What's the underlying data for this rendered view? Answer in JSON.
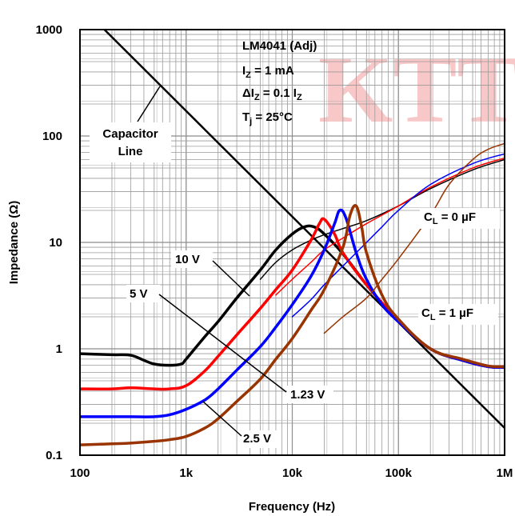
{
  "watermark": "KTT",
  "chart_data": {
    "type": "line",
    "xscale": "log",
    "yscale": "log",
    "xlim": [
      100,
      1000000
    ],
    "ylim": [
      0.1,
      1000
    ],
    "xlabel": "Frequency (Hz)",
    "ylabel": "Impedance (Ω)",
    "grid": true,
    "x_ticks": [
      {
        "value": 100,
        "label": "100"
      },
      {
        "value": 1000,
        "label": "1k"
      },
      {
        "value": 10000,
        "label": "10k"
      },
      {
        "value": 100000,
        "label": "100k"
      },
      {
        "value": 1000000,
        "label": "1M"
      }
    ],
    "y_ticks": [
      {
        "value": 0.1,
        "label": "0.1"
      },
      {
        "value": 1,
        "label": "1"
      },
      {
        "value": 10,
        "label": "10"
      },
      {
        "value": 100,
        "label": "100"
      },
      {
        "value": 1000,
        "label": "1000"
      }
    ],
    "conditions": {
      "device": "LM4041 (Adj)",
      "iz": {
        "main": "I",
        "sub": "Z",
        "rest": " = 1 mA"
      },
      "delta_iz": {
        "main": "ΔI",
        "sub": "Z",
        "rest": " = 0.1 I",
        "sub2": "Z"
      },
      "tj": {
        "main": "T",
        "sub": "j",
        "rest": " = 25°C"
      }
    },
    "annotations": {
      "capacitor_line": [
        "Capacitor",
        "Line"
      ],
      "v10": "10 V",
      "v5": "5 V",
      "v123": "1.23 V",
      "v25": "2.5 V",
      "cl0": {
        "main": "C",
        "sub": "L",
        "rest": " = 0 µF"
      },
      "cl1": {
        "main": "C",
        "sub": "L",
        "rest": " = 1 µF"
      }
    },
    "series": [
      {
        "voltage": "Capacitor Line",
        "color": "#000000",
        "width": 2.5,
        "x": [
          170,
          1000000
        ],
        "y": [
          1000,
          0.18
        ]
      },
      {
        "voltage": "10 V",
        "cl": "1 µF",
        "color": "#000000",
        "width": 3.5,
        "x": [
          100,
          200,
          300,
          400,
          500,
          700,
          900,
          1000,
          1500,
          2000,
          3000,
          5000,
          7000,
          10000,
          13000,
          16000,
          20000,
          30000,
          50000,
          70000,
          100000,
          200000,
          400000,
          700000,
          1000000
        ],
        "y": [
          0.9,
          0.88,
          0.87,
          0.78,
          0.72,
          0.7,
          0.72,
          0.8,
          1.3,
          1.8,
          3.0,
          5.5,
          8.5,
          12.0,
          14.0,
          14.0,
          12.0,
          7.8,
          4.0,
          2.7,
          1.85,
          1.0,
          0.78,
          0.68,
          0.67
        ]
      },
      {
        "voltage": "10 V",
        "cl": "0 µF",
        "color": "#000000",
        "width": 1.5,
        "x": [
          5000,
          7000,
          10000,
          15000,
          20000,
          30000,
          50000,
          100000,
          200000,
          500000,
          1000000
        ],
        "y": [
          4.5,
          6.5,
          8.5,
          10.5,
          11.8,
          13.5,
          16.0,
          22.0,
          32.0,
          48.0,
          60.0
        ]
      },
      {
        "voltage": "5 V",
        "cl": "1 µF",
        "color": "#ff0000",
        "width": 3.5,
        "x": [
          100,
          200,
          300,
          500,
          700,
          1000,
          1500,
          2000,
          3000,
          5000,
          7000,
          10000,
          15000,
          18000,
          20000,
          25000,
          30000,
          50000,
          100000,
          200000,
          400000,
          700000,
          1000000
        ],
        "y": [
          0.42,
          0.42,
          0.43,
          0.42,
          0.42,
          0.45,
          0.62,
          0.85,
          1.35,
          2.4,
          3.6,
          5.5,
          10.5,
          15.0,
          16.5,
          12.0,
          8.0,
          4.0,
          1.85,
          1.0,
          0.78,
          0.68,
          0.67
        ]
      },
      {
        "voltage": "5 V",
        "cl": "0 µF",
        "color": "#ff0000",
        "width": 1.5,
        "x": [
          7000,
          10000,
          15000,
          20000,
          30000,
          50000,
          100000,
          200000,
          500000,
          1000000
        ],
        "y": [
          3.2,
          4.5,
          6.5,
          8.5,
          11.0,
          15.0,
          22.0,
          33.0,
          50.0,
          62.0
        ]
      },
      {
        "voltage": "1.23 V",
        "cl": "1 µF",
        "color": "#0000ff",
        "width": 3.5,
        "x": [
          100,
          200,
          300,
          500,
          700,
          1000,
          1500,
          2000,
          3000,
          5000,
          7000,
          10000,
          15000,
          20000,
          25000,
          28000,
          32000,
          40000,
          50000,
          70000,
          100000,
          200000,
          400000,
          700000,
          1000000
        ],
        "y": [
          0.23,
          0.23,
          0.23,
          0.23,
          0.24,
          0.27,
          0.33,
          0.42,
          0.63,
          1.05,
          1.6,
          2.6,
          4.8,
          8.5,
          15.0,
          20.0,
          17.0,
          8.0,
          4.5,
          2.6,
          1.8,
          1.0,
          0.78,
          0.68,
          0.67
        ]
      },
      {
        "voltage": "1.23 V",
        "cl": "0 µF",
        "color": "#0000ff",
        "width": 1.5,
        "x": [
          10000,
          15000,
          20000,
          30000,
          50000,
          70000,
          100000,
          200000,
          500000,
          1000000
        ],
        "y": [
          2.0,
          2.9,
          4.0,
          6.0,
          10.0,
          14.0,
          20.0,
          35.0,
          55.0,
          68.0
        ]
      },
      {
        "voltage": "2.5 V",
        "cl": "1 µF",
        "color": "#993300",
        "width": 3.5,
        "x": [
          100,
          200,
          300,
          500,
          700,
          1000,
          1500,
          2000,
          3000,
          5000,
          7000,
          10000,
          15000,
          20000,
          30000,
          35000,
          40000,
          45000,
          50000,
          70000,
          100000,
          200000,
          400000,
          700000,
          1000000
        ],
        "y": [
          0.125,
          0.128,
          0.13,
          0.135,
          0.14,
          0.15,
          0.18,
          0.22,
          0.32,
          0.52,
          0.8,
          1.25,
          2.3,
          3.6,
          9.0,
          18.0,
          22.0,
          14.0,
          8.0,
          3.2,
          1.9,
          1.0,
          0.8,
          0.69,
          0.68
        ]
      },
      {
        "voltage": "2.5 V",
        "cl": "0 µF",
        "color": "#993300",
        "width": 1.5,
        "x": [
          20000,
          30000,
          50000,
          70000,
          100000,
          200000,
          300000,
          500000,
          700000,
          1000000
        ],
        "y": [
          1.4,
          2.0,
          3.0,
          4.5,
          7.0,
          18.0,
          35.0,
          60.0,
          75.0,
          85.0
        ]
      }
    ]
  }
}
